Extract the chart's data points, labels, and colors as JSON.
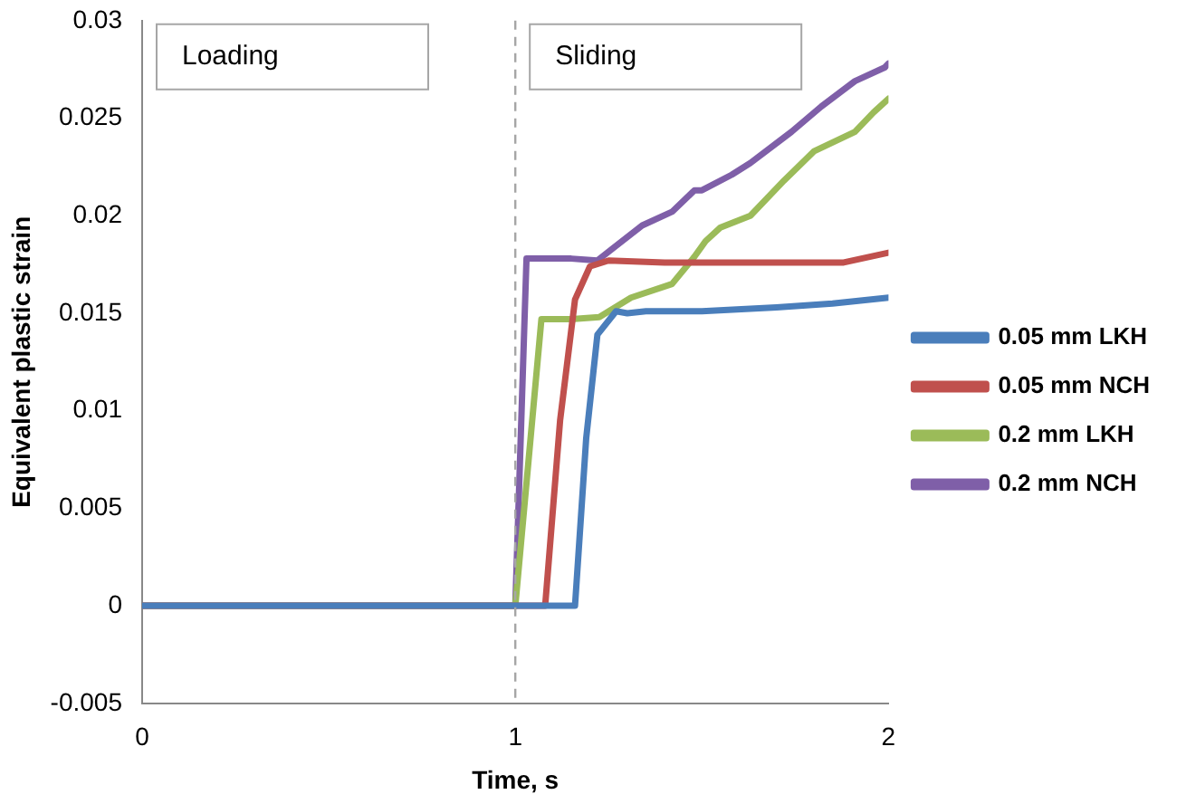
{
  "chart_data": {
    "type": "line",
    "xlabel": "Time, s",
    "ylabel": "Equivalent plastic strain",
    "xlim": [
      0,
      2
    ],
    "xticks": [
      0,
      1,
      2
    ],
    "ylim": [
      -0.005,
      0.03
    ],
    "yticks": [
      -0.005,
      0,
      0.005,
      0.01,
      0.015,
      0.02,
      0.025,
      0.03
    ],
    "legend": "right",
    "grid": false,
    "marker": "none",
    "ref_lines": [
      {
        "axis": "x",
        "value": 1,
        "line_style": "dashed",
        "color": "#a6a6a6"
      }
    ],
    "annotations": [
      "Loading",
      "Sliding"
    ],
    "series": [
      {
        "name": "0.05 mm LKH",
        "color": "#4a7ebb",
        "x": [
          0,
          1,
          1.14,
          1.16,
          1.19,
          1.22,
          1.27,
          1.3,
          1.35,
          1.5,
          1.7,
          1.85,
          2
        ],
        "values": [
          0,
          0,
          0,
          0,
          0.0086,
          0.0139,
          0.0151,
          0.015,
          0.0151,
          0.0151,
          0.0153,
          0.0155,
          0.0158
        ]
      },
      {
        "name": "0.05 mm NCH",
        "color": "#c0504d",
        "x": [
          0,
          1,
          1.05,
          1.08,
          1.12,
          1.16,
          1.2,
          1.25,
          1.4,
          1.6,
          1.88,
          2
        ],
        "values": [
          0,
          0,
          0,
          0,
          0.0095,
          0.0157,
          0.0174,
          0.0177,
          0.0176,
          0.0176,
          0.0176,
          0.0181
        ]
      },
      {
        "name": "0.2 mm LKH",
        "color": "#9bbb59",
        "x": [
          0,
          1,
          1.07,
          1.15,
          1.225,
          1.31,
          1.42,
          1.48,
          1.51,
          1.55,
          1.63,
          1.72,
          1.8,
          1.91,
          1.96,
          2
        ],
        "values": [
          0,
          0,
          0.0147,
          0.0147,
          0.0148,
          0.0158,
          0.0165,
          0.0179,
          0.0187,
          0.0194,
          0.02,
          0.0218,
          0.0233,
          0.0243,
          0.0253,
          0.026
        ]
      },
      {
        "name": "0.2 mm NCH",
        "color": "#7f5fa8",
        "x": [
          0,
          1,
          1.03,
          1.15,
          1.22,
          1.26,
          1.34,
          1.42,
          1.48,
          1.5,
          1.58,
          1.63,
          1.74,
          1.82,
          1.91,
          1.99,
          2
        ],
        "values": [
          0,
          0,
          0.0178,
          0.0178,
          0.0177,
          0.0183,
          0.0195,
          0.0202,
          0.0213,
          0.0213,
          0.0221,
          0.0227,
          0.0243,
          0.0256,
          0.0269,
          0.0276,
          0.0278
        ]
      }
    ]
  }
}
